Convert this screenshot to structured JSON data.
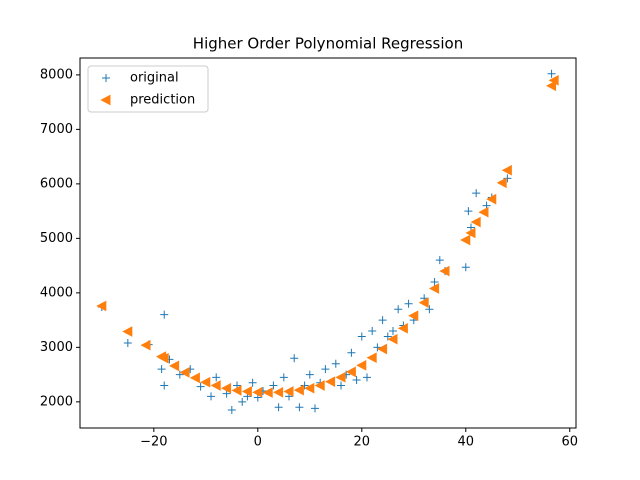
{
  "chart_data": {
    "type": "scatter",
    "title": "Higher Order Polynomial Regression",
    "xlim": [
      -34.2,
      61.2
    ],
    "ylim": [
      1520,
      8310
    ],
    "xticks": [
      {
        "value": -20,
        "label": "−20"
      },
      0,
      20,
      40,
      60
    ],
    "yticks": [
      2000,
      3000,
      4000,
      5000,
      6000,
      7000,
      8000
    ],
    "legend": "upper left",
    "series": [
      {
        "name": "original",
        "color": "#1f77b4",
        "marker": "plus",
        "x": [
          -30,
          -25,
          -21,
          -18,
          -18.5,
          -18,
          -17,
          -15,
          -13,
          -11,
          -9,
          -8,
          -6,
          -5,
          -4,
          -3,
          -2,
          -1,
          0,
          1,
          3,
          4,
          5,
          6,
          7,
          8,
          9,
          10,
          11,
          12,
          13,
          15,
          16,
          17,
          18,
          19,
          20,
          21,
          22,
          23,
          24,
          25,
          26,
          27,
          28,
          29,
          30,
          32,
          33,
          34,
          35,
          36,
          40,
          40.5,
          41,
          42,
          44,
          45,
          48,
          56.5
        ],
        "values": [
          3740,
          3080,
          3050,
          3600,
          2600,
          2300,
          2780,
          2500,
          2600,
          2280,
          2100,
          2450,
          2150,
          1850,
          2300,
          2000,
          2100,
          2350,
          2080,
          2200,
          2300,
          1900,
          2450,
          2100,
          2800,
          1900,
          2300,
          2500,
          1880,
          2350,
          2600,
          2700,
          2300,
          2500,
          2900,
          2400,
          3200,
          2450,
          3300,
          3000,
          3500,
          3200,
          3300,
          3700,
          3400,
          3800,
          3500,
          3900,
          3700,
          4200,
          4600,
          4400,
          4470,
          5500,
          5200,
          5830,
          5600,
          5750,
          6100,
          8020
        ]
      },
      {
        "name": "prediction",
        "color": "#ff7f0e",
        "marker": "triangle-left",
        "x": [
          -30,
          -25,
          -21.5,
          -18.5,
          -18,
          -16,
          -14,
          -12,
          -10,
          -8,
          -6,
          -4,
          -2,
          0,
          2,
          4,
          6,
          8,
          10,
          12,
          14,
          16,
          18,
          20,
          22,
          24,
          26,
          28,
          30,
          32,
          34,
          36,
          40,
          41,
          42,
          43.5,
          45,
          47,
          48,
          56.5,
          57
        ],
        "values": [
          3760,
          3290,
          3040,
          2830,
          2800,
          2660,
          2540,
          2440,
          2360,
          2300,
          2250,
          2210,
          2190,
          2175,
          2170,
          2175,
          2190,
          2215,
          2250,
          2300,
          2370,
          2450,
          2550,
          2670,
          2810,
          2970,
          3150,
          3350,
          3580,
          3820,
          4080,
          4400,
          4970,
          5100,
          5300,
          5480,
          5720,
          6020,
          6250,
          7800,
          7900
        ]
      }
    ]
  }
}
